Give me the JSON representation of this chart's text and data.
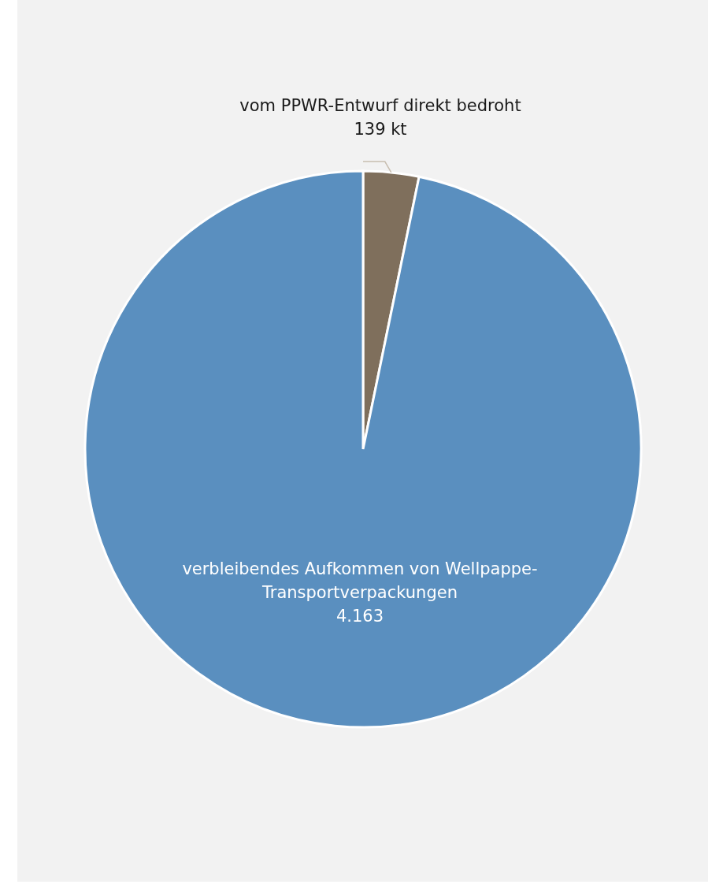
{
  "chart_data": {
    "type": "pie",
    "categories": [
      "vom PPWR-Entwurf direkt bedroht",
      "verbleibendes Aufkommen von Wellpappe-Transportverpackungen"
    ],
    "values": [
      139,
      4163
    ],
    "value_labels": [
      "139 kt",
      "4.163"
    ],
    "colors": [
      "#7f6f5c",
      "#5a8fbf"
    ]
  }
}
